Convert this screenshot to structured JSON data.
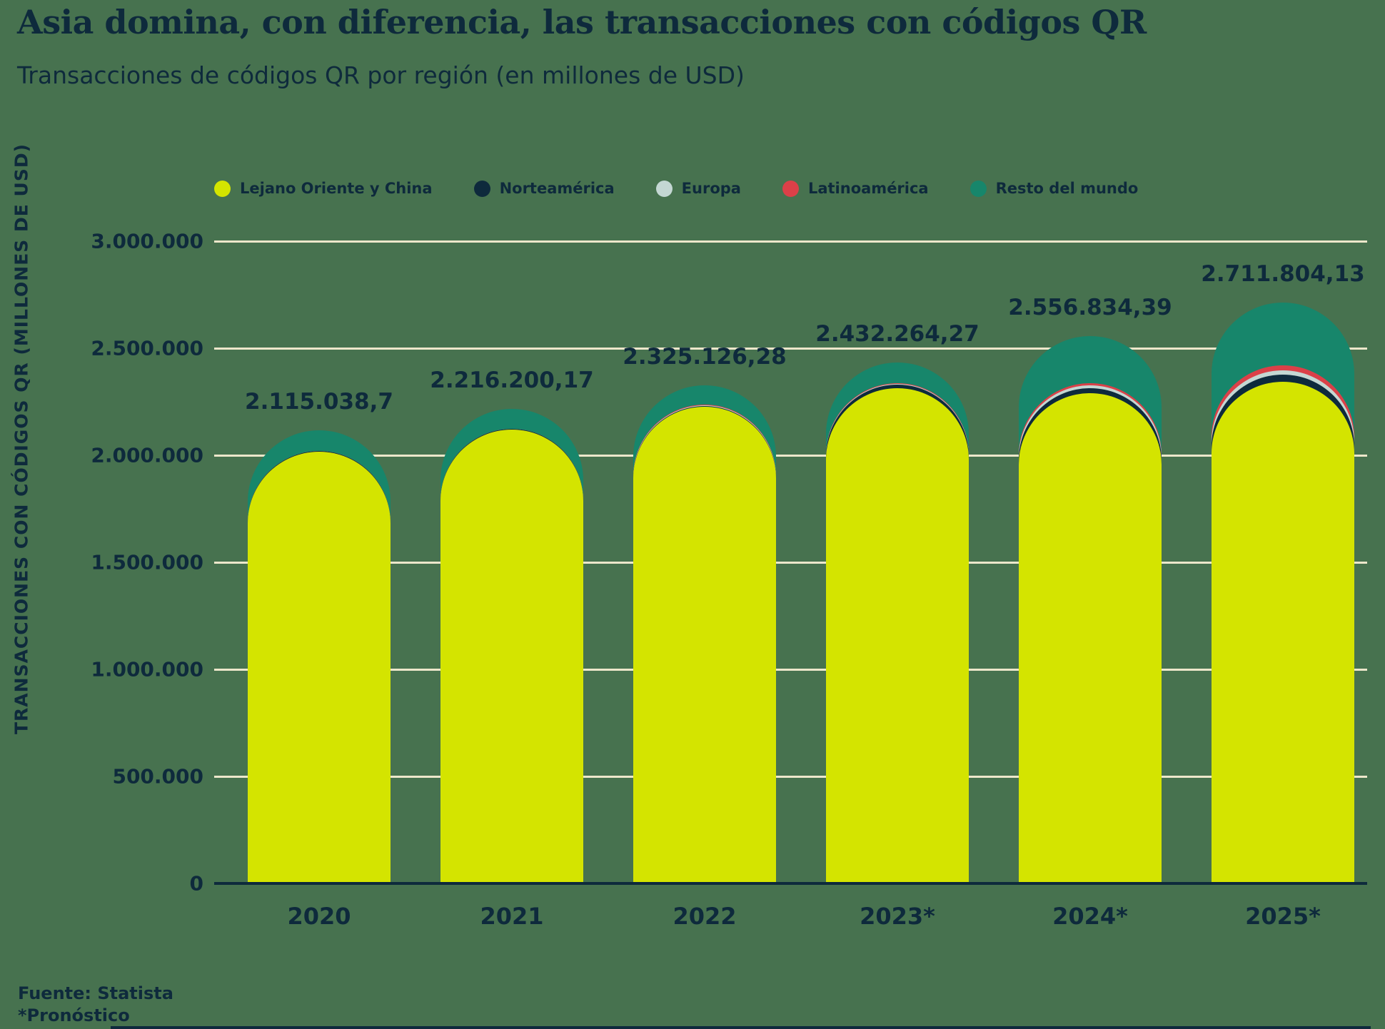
{
  "title": "Asia domina, con diferencia, las transacciones con códigos QR",
  "subtitle": "Transacciones de códigos QR por región (en millones de USD)",
  "legend": [
    {
      "label": "Lejano Oriente y China",
      "color": "#D4E400"
    },
    {
      "label": "Norteamérica",
      "color": "#0E2A3C"
    },
    {
      "label": "Europa",
      "color": "#C4D7D3"
    },
    {
      "label": "Latinoamérica",
      "color": "#DB4048"
    },
    {
      "label": "Resto del mundo",
      "color": "#17866B"
    }
  ],
  "colors": {
    "background": "#47724F",
    "gridline": "#EDE7CB",
    "axis": "#0E2A3C",
    "text": "#0E2A3C"
  },
  "y_axis": {
    "title": "TRANSACCIONES CON CÓDIGOS QR (MILLONES DE USD)",
    "tick_labels": [
      "3.000.000",
      "2.500.000",
      "2.000.000",
      "1.500.000",
      "1.000.000",
      "500.000",
      "0"
    ],
    "tick_values": [
      3000000,
      2500000,
      2000000,
      1500000,
      1000000,
      500000,
      0
    ]
  },
  "footer": {
    "source": "Fuente: Statista",
    "note": "*Pronóstico"
  },
  "chart_data": {
    "type": "bar",
    "stacked": true,
    "rounded_tops": true,
    "title": "Transacciones de códigos QR por región (en millones de USD)",
    "xlabel": "",
    "ylabel": "TRANSACCIONES CON CÓDIGOS QR (MILLONES DE USD)",
    "ylim": [
      0,
      3000000
    ],
    "grid": true,
    "legend_position": "top",
    "categories": [
      "2020",
      "2021",
      "2022",
      "2023*",
      "2024*",
      "2025*"
    ],
    "series": [
      {
        "name": "Lejano Oriente y China",
        "color": "#D4E400",
        "values": [
          2018000,
          2120000,
          2228000,
          2315000,
          2290000,
          2345000
        ]
      },
      {
        "name": "Norteamérica",
        "color": "#0E2A3C",
        "values": [
          1500,
          2000,
          3500,
          14000,
          24000,
          31000
        ]
      },
      {
        "name": "Europa",
        "color": "#C4D7D3",
        "values": [
          900,
          1100,
          1500,
          2800,
          14000,
          21000
        ]
      },
      {
        "name": "Latinoamérica",
        "color": "#DB4048",
        "values": [
          1100,
          1600,
          2600,
          5000,
          8000,
          24000
        ]
      },
      {
        "name": "Resto del mundo",
        "color": "#17866B",
        "values": [
          93538.7,
          91500.17,
          89526.28,
          95464.27,
          220834.39,
          290804.13
        ]
      }
    ],
    "series_values_estimated_from_pixels": true,
    "totals": [
      2115038.7,
      2216200.17,
      2325126.28,
      2432264.27,
      2556834.39,
      2711804.13
    ],
    "total_labels": [
      "2.115.038,7",
      "2.216.200,17",
      "2.325.126,28",
      "2.432.264,27",
      "2.556.834,39",
      "2.711.804,13"
    ]
  }
}
